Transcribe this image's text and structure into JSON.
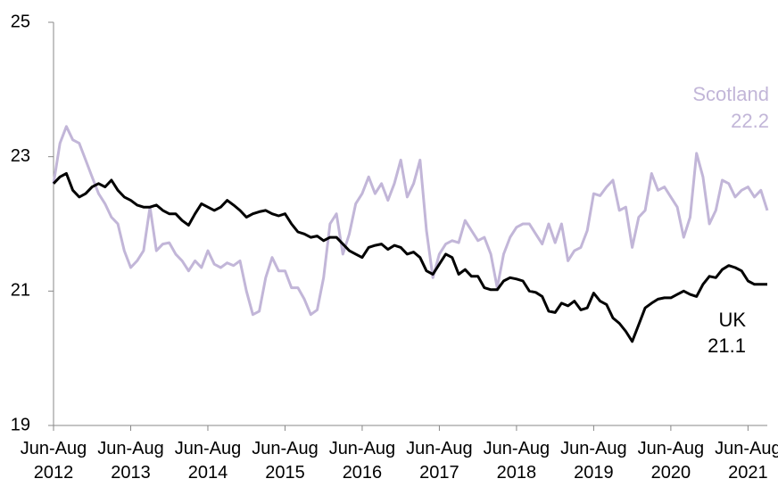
{
  "chart_data": {
    "type": "line",
    "categories": [
      "Jun-Aug 2012",
      null,
      null,
      null,
      null,
      null,
      null,
      null,
      null,
      null,
      null,
      null,
      "Jun-Aug 2013",
      null,
      null,
      null,
      null,
      null,
      null,
      null,
      null,
      null,
      null,
      null,
      "Jun-Aug 2014",
      null,
      null,
      null,
      null,
      null,
      null,
      null,
      null,
      null,
      null,
      null,
      "Jun-Aug 2015",
      null,
      null,
      null,
      null,
      null,
      null,
      null,
      null,
      null,
      null,
      null,
      "Jun-Aug 2016",
      null,
      null,
      null,
      null,
      null,
      null,
      null,
      null,
      null,
      null,
      null,
      "Jun-Aug 2017",
      null,
      null,
      null,
      null,
      null,
      null,
      null,
      null,
      null,
      null,
      null,
      "Jun-Aug 2018",
      null,
      null,
      null,
      null,
      null,
      null,
      null,
      null,
      null,
      null,
      null,
      "Jun-Aug 2019",
      null,
      null,
      null,
      null,
      null,
      null,
      null,
      null,
      null,
      null,
      null,
      "Jun-Aug 2020",
      null,
      null,
      null,
      null,
      null,
      null,
      null,
      null,
      null,
      null,
      null,
      "Jun-Aug 2021",
      null,
      null,
      null
    ],
    "series": [
      {
        "name": "Scotland",
        "color": "#c2b6d8",
        "values": [
          22.6,
          23.2,
          23.45,
          23.25,
          23.2,
          22.95,
          22.7,
          22.45,
          22.3,
          22.1,
          22.0,
          21.6,
          21.35,
          21.45,
          21.6,
          22.25,
          21.6,
          21.7,
          21.72,
          21.55,
          21.45,
          21.3,
          21.45,
          21.35,
          21.6,
          21.4,
          21.35,
          21.42,
          21.38,
          21.45,
          21.0,
          20.65,
          20.7,
          21.2,
          21.5,
          21.3,
          21.3,
          21.05,
          21.05,
          20.88,
          20.65,
          20.72,
          21.2,
          22.0,
          22.15,
          21.55,
          21.85,
          22.3,
          22.45,
          22.7,
          22.45,
          22.6,
          22.35,
          22.6,
          22.95,
          22.4,
          22.6,
          22.95,
          21.9,
          21.2,
          21.55,
          21.7,
          21.75,
          21.72,
          22.05,
          21.9,
          21.75,
          21.8,
          21.55,
          21.05,
          21.55,
          21.8,
          21.95,
          22.0,
          22.0,
          21.85,
          21.7,
          22.0,
          21.72,
          22.0,
          21.45,
          21.6,
          21.65,
          21.9,
          22.45,
          22.42,
          22.55,
          22.65,
          22.2,
          22.25,
          21.65,
          22.1,
          22.2,
          22.75,
          22.5,
          22.55,
          22.4,
          22.25,
          21.8,
          22.1,
          23.05,
          22.7,
          22.0,
          22.2,
          22.65,
          22.6,
          22.4,
          22.5,
          22.55,
          22.4,
          22.5,
          22.2
        ]
      },
      {
        "name": "UK",
        "color": "#000000",
        "values": [
          22.6,
          22.7,
          22.75,
          22.5,
          22.4,
          22.45,
          22.55,
          22.6,
          22.55,
          22.65,
          22.5,
          22.4,
          22.35,
          22.28,
          22.25,
          22.25,
          22.28,
          22.2,
          22.15,
          22.15,
          22.05,
          21.98,
          22.15,
          22.3,
          22.25,
          22.2,
          22.25,
          22.35,
          22.28,
          22.2,
          22.1,
          22.15,
          22.18,
          22.2,
          22.15,
          22.12,
          22.15,
          22.0,
          21.88,
          21.85,
          21.8,
          21.82,
          21.75,
          21.8,
          21.8,
          21.7,
          21.6,
          21.55,
          21.5,
          21.65,
          21.68,
          21.7,
          21.62,
          21.68,
          21.65,
          21.55,
          21.58,
          21.5,
          21.3,
          21.25,
          21.4,
          21.55,
          21.5,
          21.25,
          21.32,
          21.22,
          21.22,
          21.05,
          21.02,
          21.02,
          21.15,
          21.2,
          21.18,
          21.15,
          21.0,
          20.98,
          20.92,
          20.7,
          20.68,
          20.82,
          20.78,
          20.85,
          20.72,
          20.75,
          20.97,
          20.85,
          20.8,
          20.6,
          20.52,
          20.4,
          20.25,
          20.5,
          20.75,
          20.82,
          20.88,
          20.9,
          20.9,
          20.95,
          21.0,
          20.95,
          20.92,
          21.1,
          21.22,
          21.2,
          21.32,
          21.38,
          21.35,
          21.3,
          21.15,
          21.1,
          21.1,
          21.1
        ]
      }
    ],
    "ylim": [
      19,
      25
    ],
    "yticks": [
      19,
      21,
      23,
      25
    ]
  }
}
